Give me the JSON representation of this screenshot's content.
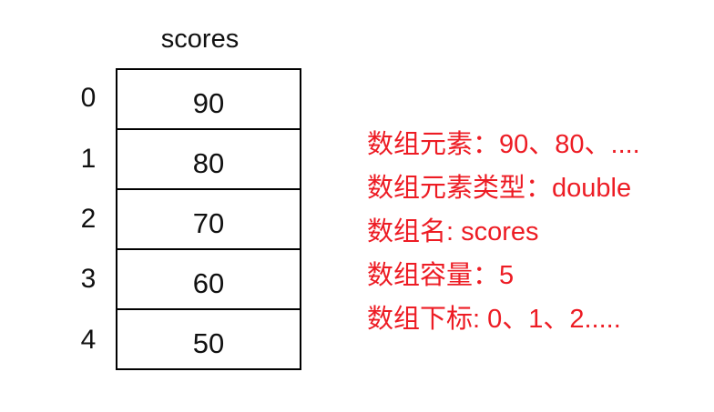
{
  "array_diagram": {
    "title": "scores",
    "rows": [
      {
        "index": "0",
        "value": "90"
      },
      {
        "index": "1",
        "value": "80"
      },
      {
        "index": "2",
        "value": "70"
      },
      {
        "index": "3",
        "value": "60"
      },
      {
        "index": "4",
        "value": "50"
      }
    ]
  },
  "annotations": {
    "text_color": "#ed1c24",
    "lines": [
      "数组元素：90、80、....",
      "数组元素类型：double",
      "数组名: scores",
      "数组容量：5",
      "数组下标: 0、1、2....."
    ]
  }
}
